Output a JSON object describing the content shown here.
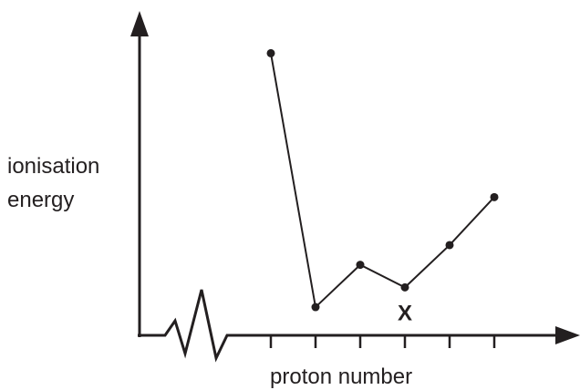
{
  "chart_data": {
    "type": "line",
    "title": "",
    "xlabel": "proton number",
    "ylabel_lines": [
      "ionisation",
      "energy"
    ],
    "x_axis_broken": true,
    "x_ticks": 6,
    "x": [
      1,
      2,
      3,
      4,
      5,
      6
    ],
    "series": [
      {
        "values": [
          100,
          10,
          25,
          17,
          32,
          49
        ]
      }
    ],
    "ylim": [
      0,
      115
    ],
    "annotations": [
      {
        "text": "X",
        "x": 4
      }
    ],
    "grid": false,
    "legend": "none",
    "colors": {
      "ink": "#231f20",
      "background": "#ffffff"
    }
  }
}
